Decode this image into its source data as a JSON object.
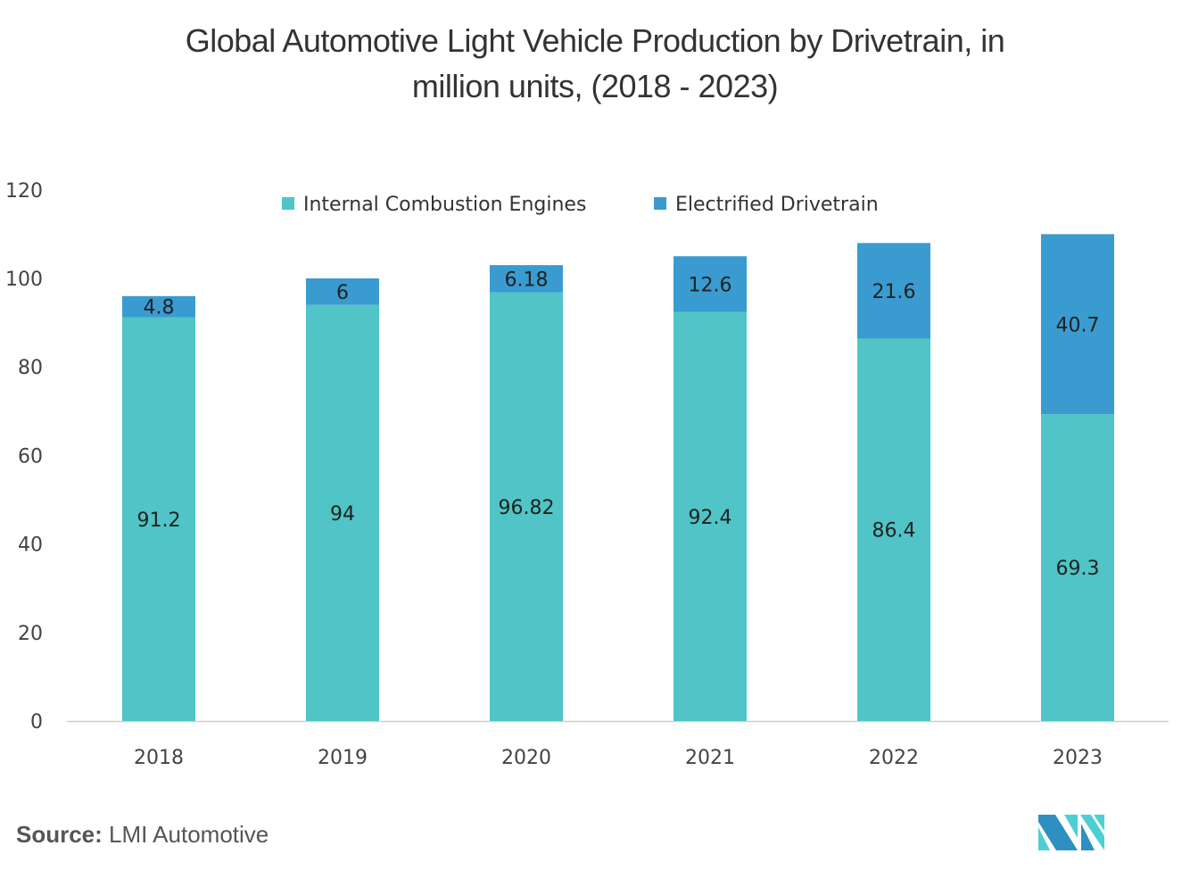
{
  "chart_data": {
    "type": "bar",
    "stacked": true,
    "title_line1": "Global Automotive Light Vehicle Production by Drivetrain, in",
    "title_line2": "million units, (2018 - 2023)",
    "categories": [
      "2018",
      "2019",
      "2020",
      "2021",
      "2022",
      "2023"
    ],
    "series": [
      {
        "name": "Internal Combustion Engines",
        "color": "#50C4C6",
        "values": [
          91.2,
          94,
          96.82,
          92.4,
          86.4,
          69.3
        ],
        "labels": [
          "91.2",
          "94",
          "96.82",
          "92.4",
          "86.4",
          "69.3"
        ]
      },
      {
        "name": "Electrified Drivetrain",
        "color": "#3A9BD0",
        "values": [
          4.8,
          6,
          6.18,
          12.6,
          21.6,
          40.7
        ],
        "labels": [
          "4.8",
          "6",
          "6.18",
          "12.6",
          "21.6",
          "40.7"
        ]
      }
    ],
    "ylim": [
      0,
      120
    ],
    "yticks": [
      "0",
      "20",
      "40",
      "60",
      "80",
      "100",
      "120"
    ],
    "grid": false,
    "legend_position": "top"
  },
  "source": {
    "label": "Source:",
    "text": "LMI Automotive"
  },
  "logo": {
    "text": "MI"
  }
}
